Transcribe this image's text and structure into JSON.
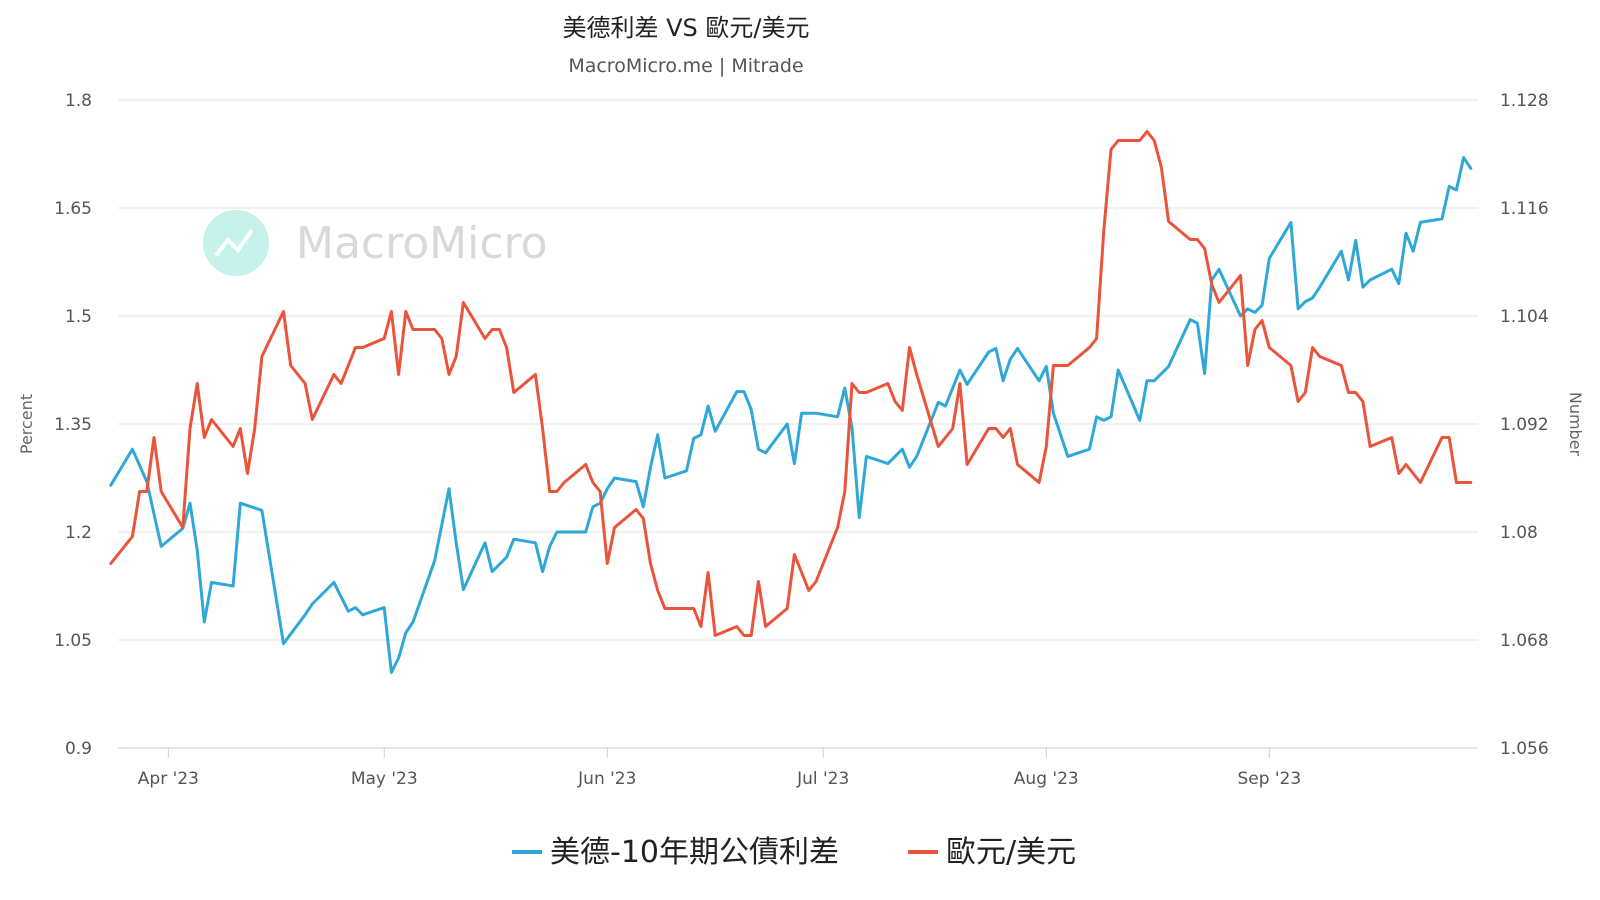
{
  "chart_data": {
    "type": "line",
    "title": "美德利差 VS 歐元/美元",
    "subtitle": "MacroMicro.me | Mitrade",
    "watermark": "MacroMicro",
    "y_left": {
      "label": "Percent",
      "ticks": [
        "1.8",
        "1.65",
        "1.5",
        "1.35",
        "1.2",
        "1.05",
        "0.9"
      ],
      "range": [
        0.9,
        1.8
      ]
    },
    "y_right": {
      "label": "Number",
      "ticks": [
        "1.128",
        "1.116",
        "1.104",
        "1.092",
        "1.08",
        "1.068",
        "1.056"
      ],
      "range": [
        1.056,
        1.128
      ]
    },
    "x_range": [
      "2023-03-25",
      "2023-09-30"
    ],
    "x_ticks": [
      {
        "label": "Apr '23",
        "date": "2023-04-01"
      },
      {
        "label": "May '23",
        "date": "2023-05-01"
      },
      {
        "label": "Jun '23",
        "date": "2023-06-01"
      },
      {
        "label": "Jul '23",
        "date": "2023-07-01"
      },
      {
        "label": "Aug '23",
        "date": "2023-08-01"
      },
      {
        "label": "Sep '23",
        "date": "2023-09-01"
      }
    ],
    "grid": true,
    "legend_position": "bottom",
    "series": [
      {
        "name": "美德-10年期公債利差",
        "axis": "left",
        "color": "#2fa8d8",
        "points": [
          [
            "2023-03-24",
            1.265
          ],
          [
            "2023-03-27",
            1.315
          ],
          [
            "2023-03-29",
            1.27
          ],
          [
            "2023-03-31",
            1.18
          ],
          [
            "2023-04-03",
            1.205
          ],
          [
            "2023-04-04",
            1.24
          ],
          [
            "2023-04-05",
            1.175
          ],
          [
            "2023-04-06",
            1.075
          ],
          [
            "2023-04-07",
            1.13
          ],
          [
            "2023-04-10",
            1.125
          ],
          [
            "2023-04-11",
            1.24
          ],
          [
            "2023-04-14",
            1.23
          ],
          [
            "2023-04-17",
            1.045
          ],
          [
            "2023-04-20",
            1.085
          ],
          [
            "2023-04-21",
            1.1
          ],
          [
            "2023-04-24",
            1.13
          ],
          [
            "2023-04-26",
            1.09
          ],
          [
            "2023-04-27",
            1.095
          ],
          [
            "2023-04-28",
            1.085
          ],
          [
            "2023-05-01",
            1.095
          ],
          [
            "2023-05-02",
            1.005
          ],
          [
            "2023-05-03",
            1.025
          ],
          [
            "2023-05-04",
            1.06
          ],
          [
            "2023-05-05",
            1.075
          ],
          [
            "2023-05-08",
            1.16
          ],
          [
            "2023-05-10",
            1.26
          ],
          [
            "2023-05-11",
            1.185
          ],
          [
            "2023-05-12",
            1.12
          ],
          [
            "2023-05-15",
            1.185
          ],
          [
            "2023-05-16",
            1.145
          ],
          [
            "2023-05-17",
            1.155
          ],
          [
            "2023-05-18",
            1.165
          ],
          [
            "2023-05-19",
            1.19
          ],
          [
            "2023-05-22",
            1.185
          ],
          [
            "2023-05-23",
            1.145
          ],
          [
            "2023-05-24",
            1.18
          ],
          [
            "2023-05-25",
            1.2
          ],
          [
            "2023-05-26",
            1.2
          ],
          [
            "2023-05-29",
            1.2
          ],
          [
            "2023-05-30",
            1.235
          ],
          [
            "2023-05-31",
            1.24
          ],
          [
            "2023-06-01",
            1.26
          ],
          [
            "2023-06-02",
            1.275
          ],
          [
            "2023-06-05",
            1.27
          ],
          [
            "2023-06-06",
            1.235
          ],
          [
            "2023-06-07",
            1.29
          ],
          [
            "2023-06-08",
            1.335
          ],
          [
            "2023-06-09",
            1.275
          ],
          [
            "2023-06-12",
            1.285
          ],
          [
            "2023-06-13",
            1.33
          ],
          [
            "2023-06-14",
            1.335
          ],
          [
            "2023-06-15",
            1.375
          ],
          [
            "2023-06-16",
            1.34
          ],
          [
            "2023-06-19",
            1.395
          ],
          [
            "2023-06-20",
            1.395
          ],
          [
            "2023-06-21",
            1.37
          ],
          [
            "2023-06-22",
            1.315
          ],
          [
            "2023-06-23",
            1.31
          ],
          [
            "2023-06-26",
            1.35
          ],
          [
            "2023-06-27",
            1.295
          ],
          [
            "2023-06-28",
            1.365
          ],
          [
            "2023-06-29",
            1.365
          ],
          [
            "2023-06-30",
            1.365
          ],
          [
            "2023-07-03",
            1.36
          ],
          [
            "2023-07-04",
            1.4
          ],
          [
            "2023-07-05",
            1.345
          ],
          [
            "2023-07-06",
            1.22
          ],
          [
            "2023-07-07",
            1.305
          ],
          [
            "2023-07-10",
            1.295
          ],
          [
            "2023-07-11",
            1.305
          ],
          [
            "2023-07-12",
            1.315
          ],
          [
            "2023-07-13",
            1.29
          ],
          [
            "2023-07-14",
            1.305
          ],
          [
            "2023-07-17",
            1.38
          ],
          [
            "2023-07-18",
            1.375
          ],
          [
            "2023-07-19",
            1.4
          ],
          [
            "2023-07-20",
            1.425
          ],
          [
            "2023-07-21",
            1.405
          ],
          [
            "2023-07-24",
            1.45
          ],
          [
            "2023-07-25",
            1.455
          ],
          [
            "2023-07-26",
            1.41
          ],
          [
            "2023-07-27",
            1.44
          ],
          [
            "2023-07-28",
            1.455
          ],
          [
            "2023-07-31",
            1.41
          ],
          [
            "2023-08-01",
            1.43
          ],
          [
            "2023-08-02",
            1.365
          ],
          [
            "2023-08-03",
            1.335
          ],
          [
            "2023-08-04",
            1.305
          ],
          [
            "2023-08-07",
            1.315
          ],
          [
            "2023-08-08",
            1.36
          ],
          [
            "2023-08-09",
            1.355
          ],
          [
            "2023-08-10",
            1.36
          ],
          [
            "2023-08-11",
            1.425
          ],
          [
            "2023-08-14",
            1.355
          ],
          [
            "2023-08-15",
            1.41
          ],
          [
            "2023-08-16",
            1.41
          ],
          [
            "2023-08-17",
            1.42
          ],
          [
            "2023-08-18",
            1.43
          ],
          [
            "2023-08-21",
            1.495
          ],
          [
            "2023-08-22",
            1.49
          ],
          [
            "2023-08-23",
            1.42
          ],
          [
            "2023-08-24",
            1.55
          ],
          [
            "2023-08-25",
            1.565
          ],
          [
            "2023-08-28",
            1.5
          ],
          [
            "2023-08-29",
            1.51
          ],
          [
            "2023-08-30",
            1.505
          ],
          [
            "2023-08-31",
            1.515
          ],
          [
            "2023-09-01",
            1.58
          ],
          [
            "2023-09-04",
            1.63
          ],
          [
            "2023-09-05",
            1.51
          ],
          [
            "2023-09-06",
            1.52
          ],
          [
            "2023-09-07",
            1.525
          ],
          [
            "2023-09-08",
            1.54
          ],
          [
            "2023-09-11",
            1.59
          ],
          [
            "2023-09-12",
            1.55
          ],
          [
            "2023-09-13",
            1.605
          ],
          [
            "2023-09-14",
            1.54
          ],
          [
            "2023-09-15",
            1.55
          ],
          [
            "2023-09-18",
            1.565
          ],
          [
            "2023-09-19",
            1.545
          ],
          [
            "2023-09-20",
            1.615
          ],
          [
            "2023-09-21",
            1.59
          ],
          [
            "2023-09-22",
            1.63
          ],
          [
            "2023-09-25",
            1.635
          ],
          [
            "2023-09-26",
            1.68
          ],
          [
            "2023-09-27",
            1.675
          ],
          [
            "2023-09-28",
            1.72
          ],
          [
            "2023-09-29",
            1.705
          ]
        ]
      },
      {
        "name": "歐元/美元",
        "axis": "right",
        "color": "#e9543a",
        "points": [
          [
            "2023-03-24",
            1.0765
          ],
          [
            "2023-03-27",
            1.0795
          ],
          [
            "2023-03-28",
            1.0845
          ],
          [
            "2023-03-29",
            1.0845
          ],
          [
            "2023-03-30",
            1.0905
          ],
          [
            "2023-03-31",
            1.0845
          ],
          [
            "2023-04-03",
            1.0805
          ],
          [
            "2023-04-04",
            1.0915
          ],
          [
            "2023-04-05",
            1.0965
          ],
          [
            "2023-04-06",
            1.0905
          ],
          [
            "2023-04-07",
            1.0925
          ],
          [
            "2023-04-10",
            1.0895
          ],
          [
            "2023-04-11",
            1.0915
          ],
          [
            "2023-04-12",
            1.0865
          ],
          [
            "2023-04-13",
            1.0915
          ],
          [
            "2023-04-14",
            1.0995
          ],
          [
            "2023-04-17",
            1.1045
          ],
          [
            "2023-04-18",
            1.0985
          ],
          [
            "2023-04-19",
            1.0975
          ],
          [
            "2023-04-20",
            1.0965
          ],
          [
            "2023-04-21",
            1.0925
          ],
          [
            "2023-04-24",
            1.0975
          ],
          [
            "2023-04-25",
            1.0965
          ],
          [
            "2023-04-26",
            1.0985
          ],
          [
            "2023-04-27",
            1.1005
          ],
          [
            "2023-04-28",
            1.1005
          ],
          [
            "2023-05-01",
            1.1015
          ],
          [
            "2023-05-02",
            1.1045
          ],
          [
            "2023-05-03",
            1.0975
          ],
          [
            "2023-05-04",
            1.1045
          ],
          [
            "2023-05-05",
            1.1025
          ],
          [
            "2023-05-08",
            1.1025
          ],
          [
            "2023-05-09",
            1.1015
          ],
          [
            "2023-05-10",
            1.0975
          ],
          [
            "2023-05-11",
            1.0995
          ],
          [
            "2023-05-12",
            1.1055
          ],
          [
            "2023-05-15",
            1.1015
          ],
          [
            "2023-05-16",
            1.1025
          ],
          [
            "2023-05-17",
            1.1025
          ],
          [
            "2023-05-18",
            1.1005
          ],
          [
            "2023-05-19",
            1.0955
          ],
          [
            "2023-05-22",
            1.0975
          ],
          [
            "2023-05-23",
            1.0915
          ],
          [
            "2023-05-24",
            1.0845
          ],
          [
            "2023-05-25",
            1.0845
          ],
          [
            "2023-05-26",
            1.0855
          ],
          [
            "2023-05-29",
            1.0875
          ],
          [
            "2023-05-30",
            1.0855
          ],
          [
            "2023-05-31",
            1.0845
          ],
          [
            "2023-06-01",
            1.0765
          ],
          [
            "2023-06-02",
            1.0805
          ],
          [
            "2023-06-05",
            1.0825
          ],
          [
            "2023-06-06",
            1.0815
          ],
          [
            "2023-06-07",
            1.0765
          ],
          [
            "2023-06-08",
            1.0735
          ],
          [
            "2023-06-09",
            1.0715
          ],
          [
            "2023-06-12",
            1.0715
          ],
          [
            "2023-06-13",
            1.0715
          ],
          [
            "2023-06-14",
            1.0695
          ],
          [
            "2023-06-15",
            1.0755
          ],
          [
            "2023-06-16",
            1.0685
          ],
          [
            "2023-06-19",
            1.0695
          ],
          [
            "2023-06-20",
            1.0685
          ],
          [
            "2023-06-21",
            1.0685
          ],
          [
            "2023-06-22",
            1.0745
          ],
          [
            "2023-06-23",
            1.0695
          ],
          [
            "2023-06-26",
            1.0715
          ],
          [
            "2023-06-27",
            1.0775
          ],
          [
            "2023-06-28",
            1.0755
          ],
          [
            "2023-06-29",
            1.0735
          ],
          [
            "2023-06-30",
            1.0745
          ],
          [
            "2023-07-03",
            1.0805
          ],
          [
            "2023-07-04",
            1.0845
          ],
          [
            "2023-07-05",
            1.0965
          ],
          [
            "2023-07-06",
            1.0955
          ],
          [
            "2023-07-07",
            1.0955
          ],
          [
            "2023-07-10",
            1.0965
          ],
          [
            "2023-07-11",
            1.0945
          ],
          [
            "2023-07-12",
            1.0935
          ],
          [
            "2023-07-13",
            1.1005
          ],
          [
            "2023-07-14",
            1.0975
          ],
          [
            "2023-07-17",
            1.0895
          ],
          [
            "2023-07-18",
            1.0905
          ],
          [
            "2023-07-19",
            1.0915
          ],
          [
            "2023-07-20",
            1.0965
          ],
          [
            "2023-07-21",
            1.0875
          ],
          [
            "2023-07-24",
            1.0915
          ],
          [
            "2023-07-25",
            1.0915
          ],
          [
            "2023-07-26",
            1.0905
          ],
          [
            "2023-07-27",
            1.0915
          ],
          [
            "2023-07-28",
            1.0875
          ],
          [
            "2023-07-31",
            1.0855
          ],
          [
            "2023-08-01",
            1.0895
          ],
          [
            "2023-08-02",
            1.0985
          ],
          [
            "2023-08-03",
            1.0985
          ],
          [
            "2023-08-04",
            1.0985
          ],
          [
            "2023-08-07",
            1.1005
          ],
          [
            "2023-08-08",
            1.1015
          ],
          [
            "2023-08-09",
            1.1135
          ],
          [
            "2023-08-10",
            1.1225
          ],
          [
            "2023-08-11",
            1.1235
          ],
          [
            "2023-08-14",
            1.1235
          ],
          [
            "2023-08-15",
            1.1245
          ],
          [
            "2023-08-16",
            1.1235
          ],
          [
            "2023-08-17",
            1.1205
          ],
          [
            "2023-08-18",
            1.1145
          ],
          [
            "2023-08-21",
            1.1125
          ],
          [
            "2023-08-22",
            1.1125
          ],
          [
            "2023-08-23",
            1.1115
          ],
          [
            "2023-08-24",
            1.1075
          ],
          [
            "2023-08-25",
            1.1055
          ],
          [
            "2023-08-28",
            1.1085
          ],
          [
            "2023-08-29",
            1.0985
          ],
          [
            "2023-08-30",
            1.1025
          ],
          [
            "2023-08-31",
            1.1035
          ],
          [
            "2023-09-01",
            1.1005
          ],
          [
            "2023-09-04",
            1.0985
          ],
          [
            "2023-09-05",
            1.0945
          ],
          [
            "2023-09-06",
            1.0955
          ],
          [
            "2023-09-07",
            1.1005
          ],
          [
            "2023-09-08",
            1.0995
          ],
          [
            "2023-09-11",
            1.0985
          ],
          [
            "2023-09-12",
            1.0955
          ],
          [
            "2023-09-13",
            1.0955
          ],
          [
            "2023-09-14",
            1.0945
          ],
          [
            "2023-09-15",
            1.0895
          ],
          [
            "2023-09-18",
            1.0905
          ],
          [
            "2023-09-19",
            1.0865
          ],
          [
            "2023-09-20",
            1.0875
          ],
          [
            "2023-09-21",
            1.0865
          ],
          [
            "2023-09-22",
            1.0855
          ],
          [
            "2023-09-25",
            1.0905
          ],
          [
            "2023-09-26",
            1.0905
          ],
          [
            "2023-09-27",
            1.0855
          ],
          [
            "2023-09-28",
            1.0855
          ],
          [
            "2023-09-29",
            1.0855
          ]
        ]
      }
    ]
  }
}
